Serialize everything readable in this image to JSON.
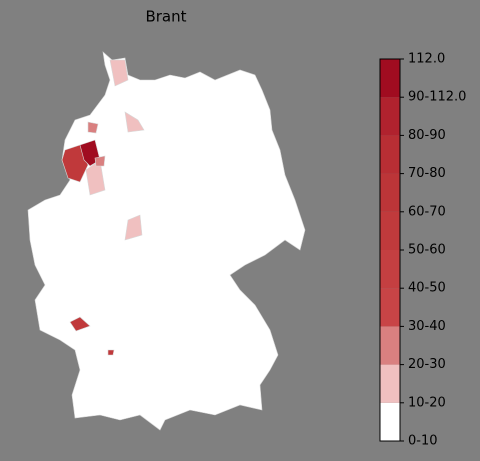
{
  "title": "Brant",
  "colorbar": {
    "labels": [
      "0-10",
      "10-20",
      "20-30",
      "30-40",
      "40-50",
      "50-60",
      "60-70",
      "70-80",
      "80-90",
      "90-112.0",
      "112.0"
    ],
    "colors": [
      "#ffffff",
      "#f0c0c0",
      "#d98080",
      "#c84446",
      "#c43f41",
      "#c03a3c",
      "#bc3538",
      "#b82e34",
      "#b0222e",
      "#a00c20"
    ]
  }
}
